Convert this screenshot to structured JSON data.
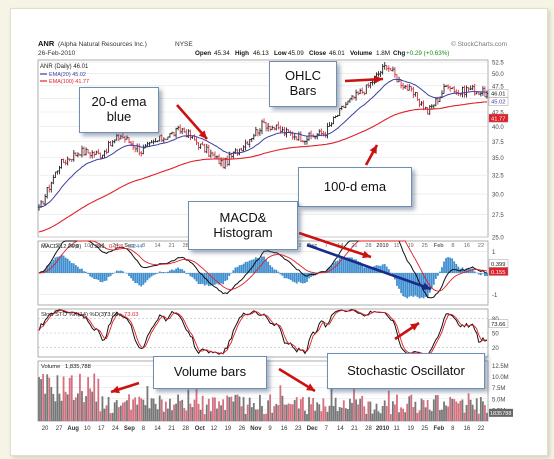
{
  "header": {
    "symbol": "ANR",
    "company": "(Alpha Natural Resources Inc.)",
    "exchange": "NYSE",
    "date": "26-Feb-2010",
    "open_label": "Open",
    "open": "45.34",
    "high_label": "High",
    "high": "46.13",
    "low_label": "Low",
    "low": "45.09",
    "close_label": "Close",
    "close": "46.01",
    "volume_label": "Volume",
    "volume": "1.8M",
    "chg_label": "Chg",
    "chg": "+0.29 (+0.63%)",
    "watermark": "© StockCharts.com"
  },
  "legend": {
    "main": "ANR (Daily) 46.01",
    "ema20": "EMA(20) 45.02",
    "ema100": "EMA(100) 41.77"
  },
  "macd_header": {
    "label": "MACD(12,26,9)",
    "v1": "0.399,",
    "v2": "0.155,",
    "v3": "0.244"
  },
  "sto_header": {
    "label": "Slow STO %K(14) %D(3)",
    "v1": "73.66,",
    "v2": "73.03"
  },
  "vol_header": {
    "label": "Volume",
    "value": "1,835,788"
  },
  "callouts": {
    "ema20": "20-d ema\nblue",
    "ohlc": "OHLC\nBars",
    "ema100": "100-d ema",
    "macd": "MACD&\nHistogram",
    "volume": "Volume bars",
    "stochastic": "Stochastic Oscillator"
  },
  "price_badges": {
    "close": "46.01",
    "ema20": "45.02",
    "ema100": "41.77"
  },
  "macd_badges": {
    "macd": "0.399",
    "signal": "0.155"
  },
  "sto_badge": "73.66",
  "vol_badge": "1835788",
  "colors": {
    "ema20": "#3c3fa0",
    "ema100": "#e0202a",
    "up": "#222222",
    "down": "#cc3344",
    "histogram": "#3f8fd0",
    "arrow_red": "#cc1111",
    "arrow_blue": "#1a2a8a"
  },
  "chart_data": {
    "type": "line",
    "ticker": "ANR",
    "panels": [
      "price",
      "macd",
      "stochastic",
      "volume"
    ],
    "x_tick_labels": [
      "20",
      "27",
      "Aug",
      "10",
      "17",
      "24",
      "Sep",
      "8",
      "14",
      "21",
      "28",
      "Oct",
      "12",
      "19",
      "26",
      "Nov",
      "9",
      "16",
      "23",
      "Dec",
      "7",
      "14",
      "21",
      "28",
      "2010",
      "11",
      "19",
      "25",
      "Feb",
      "8",
      "16",
      "22"
    ],
    "price_axis": {
      "scale": "log",
      "ylim": [
        25,
        53
      ],
      "ticks": [
        25.0,
        27.5,
        30.0,
        32.5,
        35.0,
        37.5,
        40.0,
        42.5,
        45.0,
        47.5,
        50.0,
        52.5
      ]
    },
    "price_anchors": {
      "t": [
        0,
        10,
        20,
        30,
        40,
        50,
        60,
        70,
        80,
        90,
        100,
        110,
        120,
        130,
        140,
        150,
        160,
        170,
        175,
        180,
        185,
        190,
        195,
        200,
        205,
        210,
        218
      ],
      "close": [
        28.0,
        34.0,
        36.0,
        35.5,
        38.5,
        36.0,
        38.0,
        39.5,
        36.5,
        34.0,
        37.0,
        40.5,
        39.0,
        38.0,
        39.0,
        44.0,
        47.0,
        52.0,
        49.0,
        47.0,
        45.0,
        42.5,
        45.0,
        48.0,
        46.0,
        47.0,
        46.01
      ]
    },
    "ema20_last": 45.02,
    "ema100_last": 41.77,
    "macd": {
      "params": "12,26,9",
      "macd": 0.399,
      "signal": 0.155,
      "histogram": 0.244,
      "ylim": [
        -1.5,
        1.5
      ],
      "ticks": [
        1,
        0,
        -1
      ]
    },
    "stochastic": {
      "params": "%K(14) %D(3)",
      "k": 73.66,
      "d": 73.03,
      "ylim": [
        0,
        100
      ],
      "ticks": [
        80,
        50,
        20
      ]
    },
    "volume": {
      "last": 1835788,
      "ylim": [
        0,
        13500000
      ],
      "ticks": [
        "12.5M",
        "10.0M",
        "7.5M",
        "5.0M",
        "2.5M"
      ]
    }
  }
}
